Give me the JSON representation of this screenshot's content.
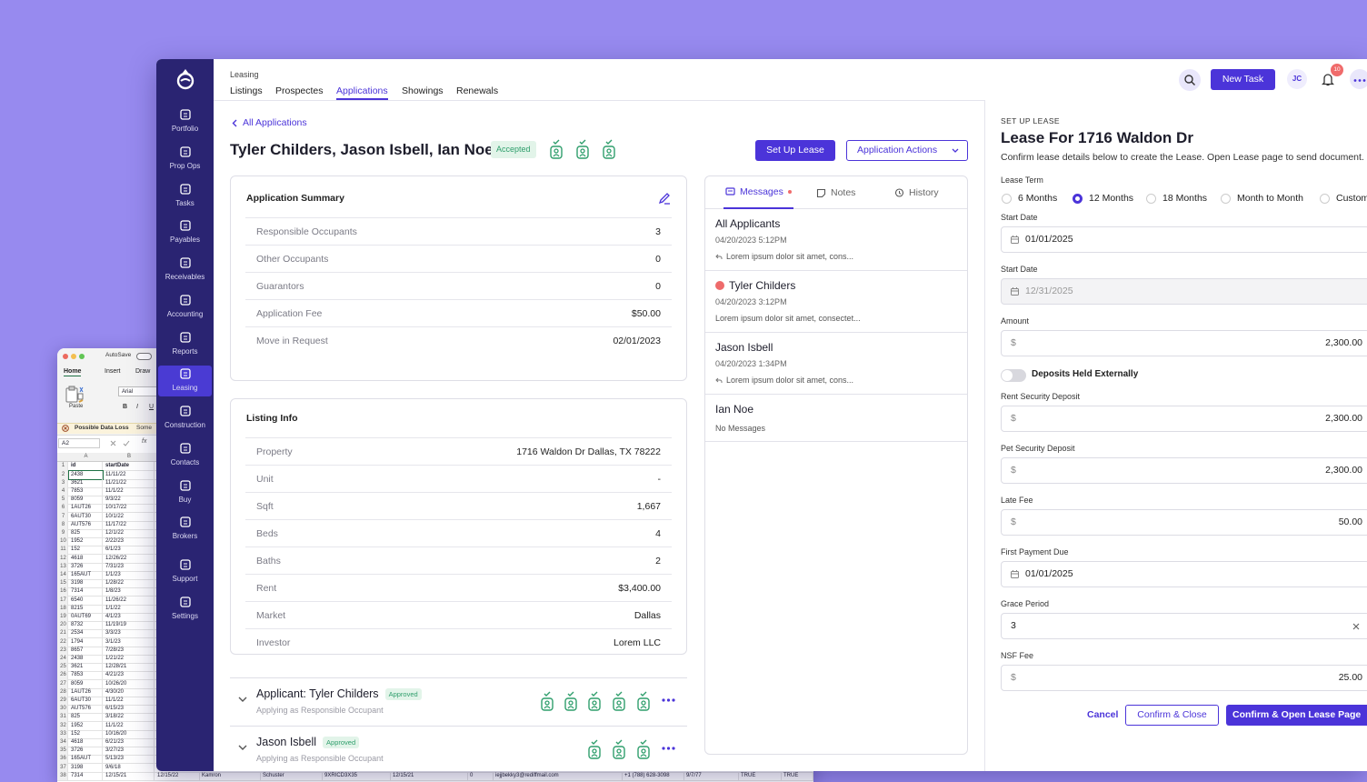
{
  "spreadsheet": {
    "autosave": "AutoSave",
    "tabs": [
      "Home",
      "Insert",
      "Draw"
    ],
    "paste": "Paste",
    "font": "Arial",
    "format_buttons": [
      "B",
      "I",
      "U"
    ],
    "warning": "Possible Data Loss",
    "warning_more": "Some",
    "cell": "A2",
    "fx": "fx",
    "columns": [
      "A",
      "B"
    ],
    "rows": [
      [
        "1",
        "id",
        "startDate"
      ],
      [
        "2",
        "2438",
        "11/11/22"
      ],
      [
        "3",
        "3621",
        "11/21/22"
      ],
      [
        "4",
        "7853",
        "11/1/22"
      ],
      [
        "5",
        "8059",
        "9/3/22"
      ],
      [
        "6",
        "1AUT26",
        "10/17/22"
      ],
      [
        "7",
        "6AUT30",
        "10/1/22"
      ],
      [
        "8",
        "AUT576",
        "11/17/22"
      ],
      [
        "9",
        "825",
        "12/1/22"
      ],
      [
        "10",
        "1952",
        "2/22/23"
      ],
      [
        "11",
        "152",
        "6/1/23"
      ],
      [
        "12",
        "4618",
        "12/26/22"
      ],
      [
        "13",
        "3726",
        "7/31/23"
      ],
      [
        "14",
        "165AUT",
        "1/1/23"
      ],
      [
        "15",
        "3198",
        "1/28/22"
      ],
      [
        "16",
        "7314",
        "1/8/23"
      ],
      [
        "17",
        "6540",
        "11/26/22"
      ],
      [
        "18",
        "8215",
        "1/1/22"
      ],
      [
        "19",
        "0AUT69",
        "4/1/23"
      ],
      [
        "20",
        "8732",
        "11/19/19"
      ],
      [
        "21",
        "2534",
        "3/3/23"
      ],
      [
        "22",
        "1794",
        "3/1/23"
      ],
      [
        "23",
        "8657",
        "7/28/23"
      ],
      [
        "24",
        "2438",
        "1/21/22"
      ],
      [
        "25",
        "3621",
        "12/28/21"
      ],
      [
        "26",
        "7853",
        "4/21/23"
      ],
      [
        "27",
        "8059",
        "10/26/20"
      ],
      [
        "28",
        "1AUT26",
        "4/30/20"
      ],
      [
        "29",
        "6AUT30",
        "11/1/22"
      ],
      [
        "30",
        "AUT576",
        "6/15/23"
      ],
      [
        "31",
        "825",
        "3/18/22"
      ],
      [
        "32",
        "1952",
        "11/1/22"
      ],
      [
        "33",
        "152",
        "10/16/20"
      ],
      [
        "34",
        "4618",
        "6/21/23"
      ],
      [
        "35",
        "3726",
        "3/27/23"
      ],
      [
        "36",
        "165AUT",
        "5/13/23"
      ],
      [
        "37",
        "3198",
        "9/6/18"
      ],
      [
        "38",
        "7314",
        "12/15/21",
        "12/15/22",
        "Kamron",
        "Schuster",
        "9XRICD3X35",
        "12/15/21",
        "0",
        "iejjbekky3@rediffmail.com",
        "+1 (788) 628-3098",
        "9/7/77",
        "TRUE",
        "TRUE"
      ]
    ]
  },
  "sidebar": {
    "items": [
      "Portfolio",
      "Prop Ops",
      "Tasks",
      "Payables",
      "Receivables",
      "Accounting",
      "Reports",
      "Leasing",
      "Construction",
      "Contacts",
      "Buy",
      "Brokers",
      "Support",
      "Settings"
    ],
    "active_item": 7
  },
  "topbar": {
    "section": "Leasing",
    "tabs": [
      "Listings",
      "Prospectes",
      "Applications",
      "Showings",
      "Renewals"
    ],
    "active_tab": 2,
    "new_task": "New Task",
    "avatar": "JC",
    "notifications": "10"
  },
  "application": {
    "back": "All Applications",
    "title": "Tyler Childers, Jason Isbell, Ian Noe",
    "status": "Accepted",
    "setup": "Set Up Lease",
    "actions": "Application Actions",
    "summary": {
      "title": "Application Summary",
      "rows": [
        [
          "Responsible Occupants",
          "3"
        ],
        [
          "Other Occupants",
          "0"
        ],
        [
          "Guarantors",
          "0"
        ],
        [
          "Application Fee",
          "$50.00"
        ],
        [
          "Move in Request",
          "02/01/2023"
        ]
      ]
    },
    "listing": {
      "title": "Listing Info",
      "rows": [
        [
          "Property",
          "1716 Waldon Dr Dallas, TX 78222"
        ],
        [
          "Unit",
          "-"
        ],
        [
          "Sqft",
          "1,667"
        ],
        [
          "Beds",
          "4"
        ],
        [
          "Baths",
          "2"
        ],
        [
          "Rent",
          "$3,400.00"
        ],
        [
          "Market",
          "Dallas"
        ],
        [
          "Investor",
          "Lorem LLC"
        ]
      ]
    },
    "applicants": [
      {
        "name": "Applicant: Tyler Childers",
        "status": "Approved",
        "role": "Applying as Responsible Occupant"
      },
      {
        "name": "Jason Isbell",
        "status": "Approved",
        "role": "Applying as Responsible Occupant"
      }
    ]
  },
  "messages": {
    "tabs": [
      "Messages",
      "Notes",
      "History"
    ],
    "threads": [
      {
        "name": "All Applicants",
        "date": "04/20/2023 5:12PM",
        "preview": "Lorem ipsum dolor sit amet, cons..."
      },
      {
        "name": "Tyler Childers",
        "date": "04/20/2023 3:12PM",
        "preview": "Lorem ipsum dolor sit amet, consectet..."
      },
      {
        "name": "Jason Isbell",
        "date": "04/20/2023 1:34PM",
        "preview": "Lorem ipsum dolor sit amet, cons..."
      },
      {
        "name": "Ian Noe",
        "preview": "No Messages"
      }
    ]
  },
  "lease": {
    "kicker": "SET UP LEASE",
    "title": "Lease For 1716 Waldon Dr",
    "description": "Confirm lease details below to create the Lease. Open Lease page to send document.",
    "term_label": "Lease Term",
    "terms": [
      "6 Months",
      "12 Months",
      "18 Months",
      "Month to Month",
      "Custom"
    ],
    "selected_term": 1,
    "fields": [
      {
        "label": "Start Date",
        "value": "01/01/2025",
        "type": "date"
      },
      {
        "label": "Start Date",
        "value": "12/31/2025",
        "type": "date",
        "disabled": true
      },
      {
        "label": "Amount",
        "prefix": "$",
        "value": "2,300.00",
        "type": "money"
      },
      {
        "toggle": "Deposits Held Externally"
      },
      {
        "label": "Rent Security Deposit",
        "prefix": "$",
        "value": "2,300.00",
        "type": "money"
      },
      {
        "label": "Pet Security Deposit",
        "prefix": "$",
        "value": "2,300.00",
        "type": "money"
      },
      {
        "label": "Late Fee",
        "prefix": "$",
        "value": "50.00",
        "type": "money"
      },
      {
        "label": "First Payment Due",
        "value": "01/01/2025",
        "type": "date"
      },
      {
        "label": "Grace Period",
        "value": "3",
        "type": "text"
      },
      {
        "label": "NSF Fee",
        "prefix": "$",
        "value": "25.00",
        "type": "money"
      }
    ],
    "cancel": "Cancel",
    "confirm_close": "Confirm & Close",
    "confirm_open": "Confirm & Open Lease Page"
  }
}
